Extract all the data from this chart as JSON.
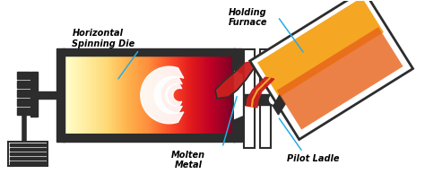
{
  "bg_color": "#ffffff",
  "labels": {
    "spinning_die": "Horizontal\nSpinning Die",
    "holding_furnace": "Holding\nFurnace",
    "molten_metal": "Molten\nMetal",
    "pilot_ladle": "Pilot Ladle"
  },
  "arrow_color": "#29abe2",
  "dark_color": "#2d2d2d",
  "orange_light": "#f5a623",
  "orange_mid": "#e8621a",
  "red_color": "#cc1f1f",
  "red_bright": "#e82020",
  "white": "#ffffff",
  "gray": "#555555"
}
